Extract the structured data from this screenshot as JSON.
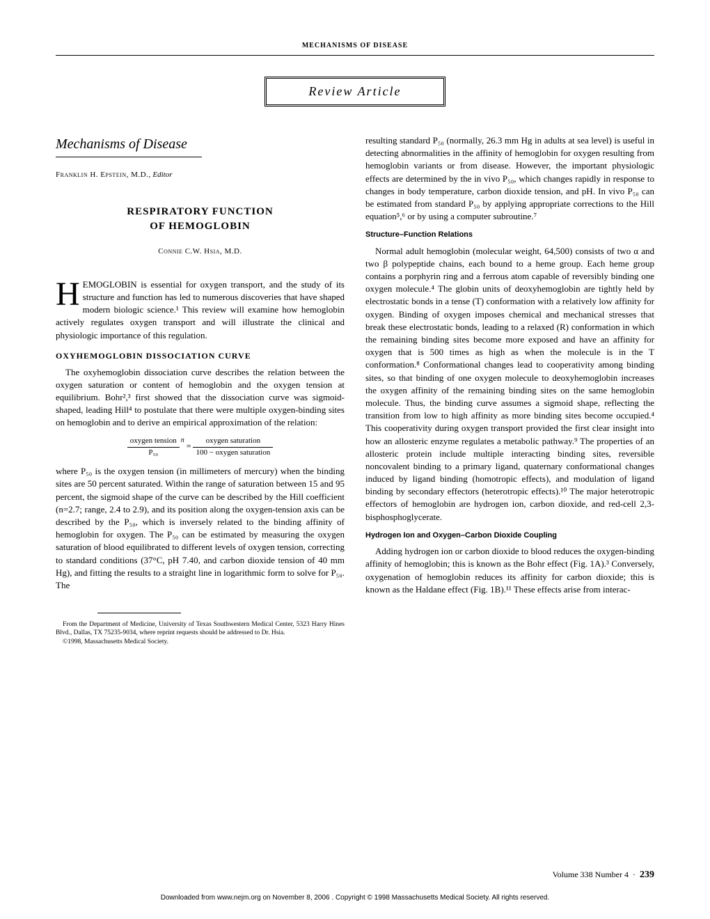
{
  "header": {
    "section_label": "MECHANISMS OF DISEASE",
    "review_label": "Review Article"
  },
  "series": {
    "title": "Mechanisms of Disease",
    "editor_name": "Franklin H. Epstein, M.D.,",
    "editor_role": "Editor"
  },
  "article": {
    "title_line1": "RESPIRATORY FUNCTION",
    "title_line2": "OF HEMOGLOBIN",
    "author": "Connie C.W. Hsia, M.D."
  },
  "body": {
    "intro_first": "H",
    "intro_rest": "EMOGLOBIN is essential for oxygen transport, and the study of its structure and function has led to numerous discoveries that have shaped modern biologic science.¹ This review will examine how hemoglobin actively regulates oxygen transport and will illustrate the clinical and physiologic importance of this regulation.",
    "h2_curve": "OXYHEMOGLOBIN DISSOCIATION CURVE",
    "curve_p1": "The oxyhemoglobin dissociation curve describes the relation between the oxygen saturation or content of hemoglobin and the oxygen tension at equilibrium. Bohr²,³ first showed that the dissociation curve was sigmoid-shaped, leading Hill⁴ to postulate that there were multiple oxygen-binding sites on hemoglobin and to derive an empirical approximation of the relation:",
    "eq": {
      "lhs_num": "oxygen tension",
      "lhs_den": "P₅₀",
      "exp": "n",
      "eq_sign": "=",
      "rhs_num": "oxygen saturation",
      "rhs_den": "100 − oxygen saturation"
    },
    "curve_p2": "where P₅₀ is the oxygen tension (in millimeters of mercury) when the binding sites are 50 percent saturated. Within the range of saturation between 15 and 95 percent, the sigmoid shape of the curve can be described by the Hill coefficient (n=2.7; range, 2.4 to 2.9), and its position along the oxygen-tension axis can be described by the P₅₀, which is inversely related to the binding affinity of hemoglobin for oxygen. The P₅₀ can be estimated by measuring the oxygen saturation of blood equilibrated to different levels of oxygen tension, correcting to standard conditions (37°C, pH 7.40, and carbon dioxide tension of 40 mm Hg), and fitting the results to a straight line in logarithmic form to solve for P₅₀. The",
    "col2_p1": "resulting standard P₅₀ (normally, 26.3 mm Hg in adults at sea level) is useful in detecting abnormalities in the affinity of hemoglobin for oxygen resulting from hemoglobin variants or from disease. However, the important physiologic effects are determined by the in vivo P₅₀, which changes rapidly in response to changes in body temperature, carbon dioxide tension, and pH. In vivo P₅₀ can be estimated from standard P₅₀ by applying appropriate corrections to the Hill equation⁵,⁶ or by using a computer subroutine.⁷",
    "h3_structure": "Structure–Function Relations",
    "structure_p1": "Normal adult hemoglobin (molecular weight, 64,500) consists of two α and two β polypeptide chains, each bound to a heme group. Each heme group contains a porphyrin ring and a ferrous atom capable of reversibly binding one oxygen molecule.⁴ The globin units of deoxyhemoglobin are tightly held by electrostatic bonds in a tense (T) conformation with a relatively low affinity for oxygen. Binding of oxygen imposes chemical and mechanical stresses that break these electrostatic bonds, leading to a relaxed (R) conformation in which the remaining binding sites become more exposed and have an affinity for oxygen that is 500 times as high as when the molecule is in the T conformation.⁸ Conformational changes lead to cooperativity among binding sites, so that binding of one oxygen molecule to deoxyhemoglobin increases the oxygen affinity of the remaining binding sites on the same hemoglobin molecule. Thus, the binding curve assumes a sigmoid shape, reflecting the transition from low to high affinity as more binding sites become occupied.⁴ This cooperativity during oxygen transport provided the first clear insight into how an allosteric enzyme regulates a metabolic pathway.⁹ The properties of an allosteric protein include multiple interacting binding sites, reversible noncovalent binding to a primary ligand, quaternary conformational changes induced by ligand binding (homotropic effects), and modulation of ligand binding by secondary effectors (heterotropic effects).¹⁰ The major heterotropic effectors of hemoglobin are hydrogen ion, carbon dioxide, and red-cell 2,3-bisphosphoglycerate.",
    "h3_hydrogen": "Hydrogen Ion and Oxygen–Carbon Dioxide Coupling",
    "hydrogen_p1": "Adding hydrogen ion or carbon dioxide to blood reduces the oxygen-binding affinity of hemoglobin; this is known as the Bohr effect (Fig. 1A).³ Conversely, oxygenation of hemoglobin reduces its affinity for carbon dioxide; this is known as the Haldane effect (Fig. 1B).¹¹ These effects arise from interac-"
  },
  "affiliation": {
    "line1": "From the Department of Medicine, University of Texas Southwestern Medical Center, 5323 Harry Hines Blvd., Dallas, TX 75235-9034, where reprint requests should be addressed to Dr. Hsia.",
    "line2": "©1998, Massachusetts Medical Society."
  },
  "footer": {
    "volume": "Volume 338  Number 4",
    "sep": "·",
    "page": "239",
    "download": "Downloaded from www.nejm.org on November 8, 2006 . Copyright © 1998 Massachusetts Medical Society. All rights reserved."
  }
}
